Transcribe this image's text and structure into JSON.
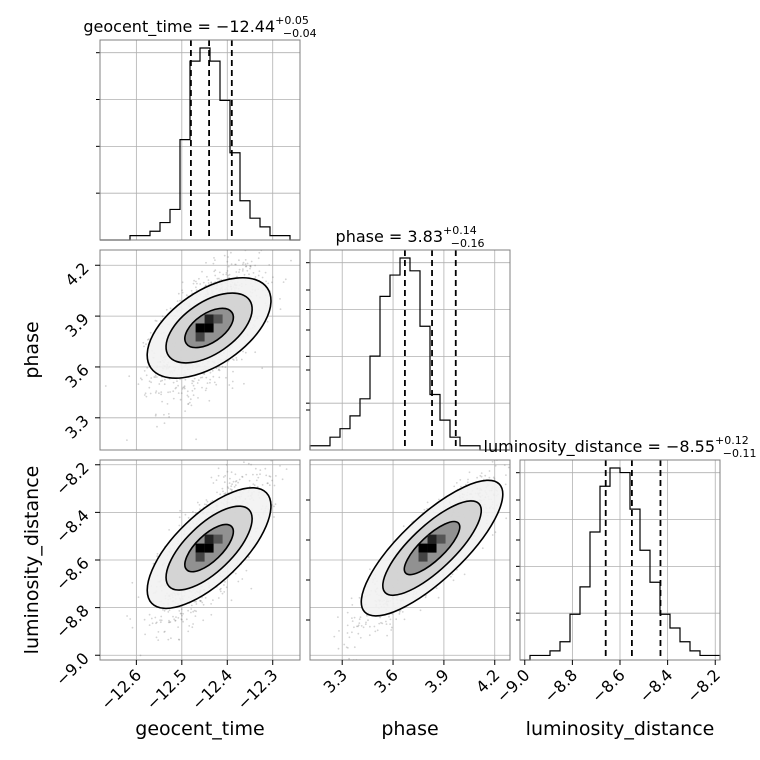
{
  "chart_data": {
    "type": "corner",
    "parameters": [
      "geocent_time",
      "phase",
      "luminosity_distance"
    ],
    "titles": [
      {
        "param": "geocent_time",
        "label": "geocent_time = ",
        "median": "−12.44",
        "upper": "+0.05",
        "lower": "−0.04"
      },
      {
        "param": "phase",
        "label": "phase = ",
        "median": "3.83",
        "upper": "+0.14",
        "lower": "−0.16"
      },
      {
        "param": "luminosity_distance",
        "label": "luminosity_distance = ",
        "median": "−8.55",
        "upper": "+0.12",
        "lower": "−0.11"
      }
    ],
    "ranges": {
      "geocent_time": [
        -12.68,
        -12.24
      ],
      "phase": [
        3.11,
        4.29
      ],
      "luminosity_distance": [
        -9.02,
        -8.18
      ]
    },
    "ticks": {
      "geocent_time": [
        -12.6,
        -12.5,
        -12.4,
        -12.3
      ],
      "phase": [
        3.3,
        3.6,
        3.9,
        4.2
      ],
      "luminosity_distance": [
        -9.0,
        -8.8,
        -8.6,
        -8.4,
        -8.2
      ]
    },
    "tick_labels": {
      "geocent_time": [
        "−12.6",
        "−12.5",
        "−12.4",
        "−12.3"
      ],
      "phase": [
        "3.3",
        "3.6",
        "3.9",
        "4.2"
      ],
      "luminosity_distance": [
        "−9.0",
        "−8.8",
        "−8.6",
        "−8.4",
        "−8.2"
      ]
    },
    "axis_labels": {
      "geocent_time": "geocent_time",
      "phase": "phase",
      "luminosity_distance": "luminosity_distance"
    },
    "quantiles": {
      "geocent_time": [
        -12.48,
        -12.44,
        -12.39
      ],
      "phase": [
        3.67,
        3.83,
        3.97
      ],
      "luminosity_distance": [
        -8.66,
        -8.55,
        -8.43
      ]
    },
    "histograms": {
      "geocent_time": [
        0,
        0,
        0,
        1,
        1,
        2,
        4,
        7,
        23,
        41,
        44,
        41,
        32,
        20,
        9,
        5,
        3,
        1,
        1,
        0
      ],
      "phase": [
        1,
        1,
        3,
        5,
        8,
        12,
        22,
        36,
        41,
        45,
        42,
        29,
        13,
        7,
        3,
        1,
        1,
        0,
        0,
        0
      ],
      "luminosity_distance": [
        0,
        1,
        1,
        2,
        4,
        10,
        16,
        28,
        38,
        42,
        41,
        33,
        24,
        17,
        10,
        7,
        4,
        2,
        1,
        1
      ]
    },
    "grid": true,
    "sample_color": "#808080",
    "contour_color": "#000000"
  }
}
